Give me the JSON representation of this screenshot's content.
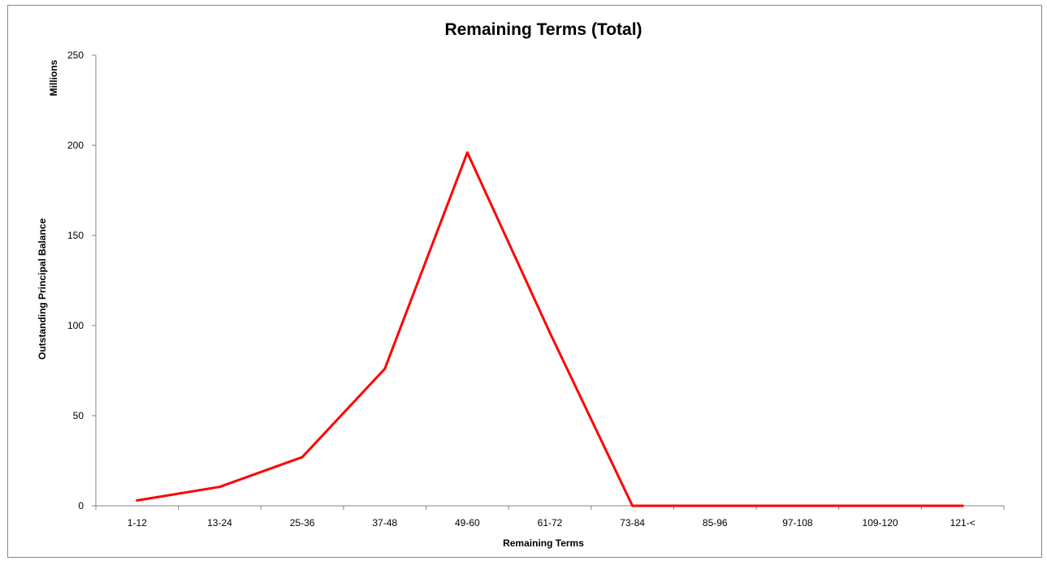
{
  "chart_data": {
    "type": "line",
    "title": "Remaining Terms (Total)",
    "xlabel": "Remaining Terms",
    "ylabel": "Outstanding Principal Balance",
    "yunit": "Millions",
    "categories": [
      "1-12",
      "13-24",
      "25-36",
      "37-48",
      "49-60",
      "61-72",
      "73-84",
      "85-96",
      "97-108",
      "109-120",
      "121-<"
    ],
    "series": [
      {
        "values": [
          3,
          10.5,
          27,
          76,
          196,
          96,
          0,
          0,
          0,
          0,
          0
        ],
        "color": "#ff0000"
      }
    ],
    "ylim": [
      0,
      250
    ],
    "yticks": [
      0,
      50,
      100,
      150,
      200,
      250
    ],
    "grid": false,
    "legend": "none"
  }
}
